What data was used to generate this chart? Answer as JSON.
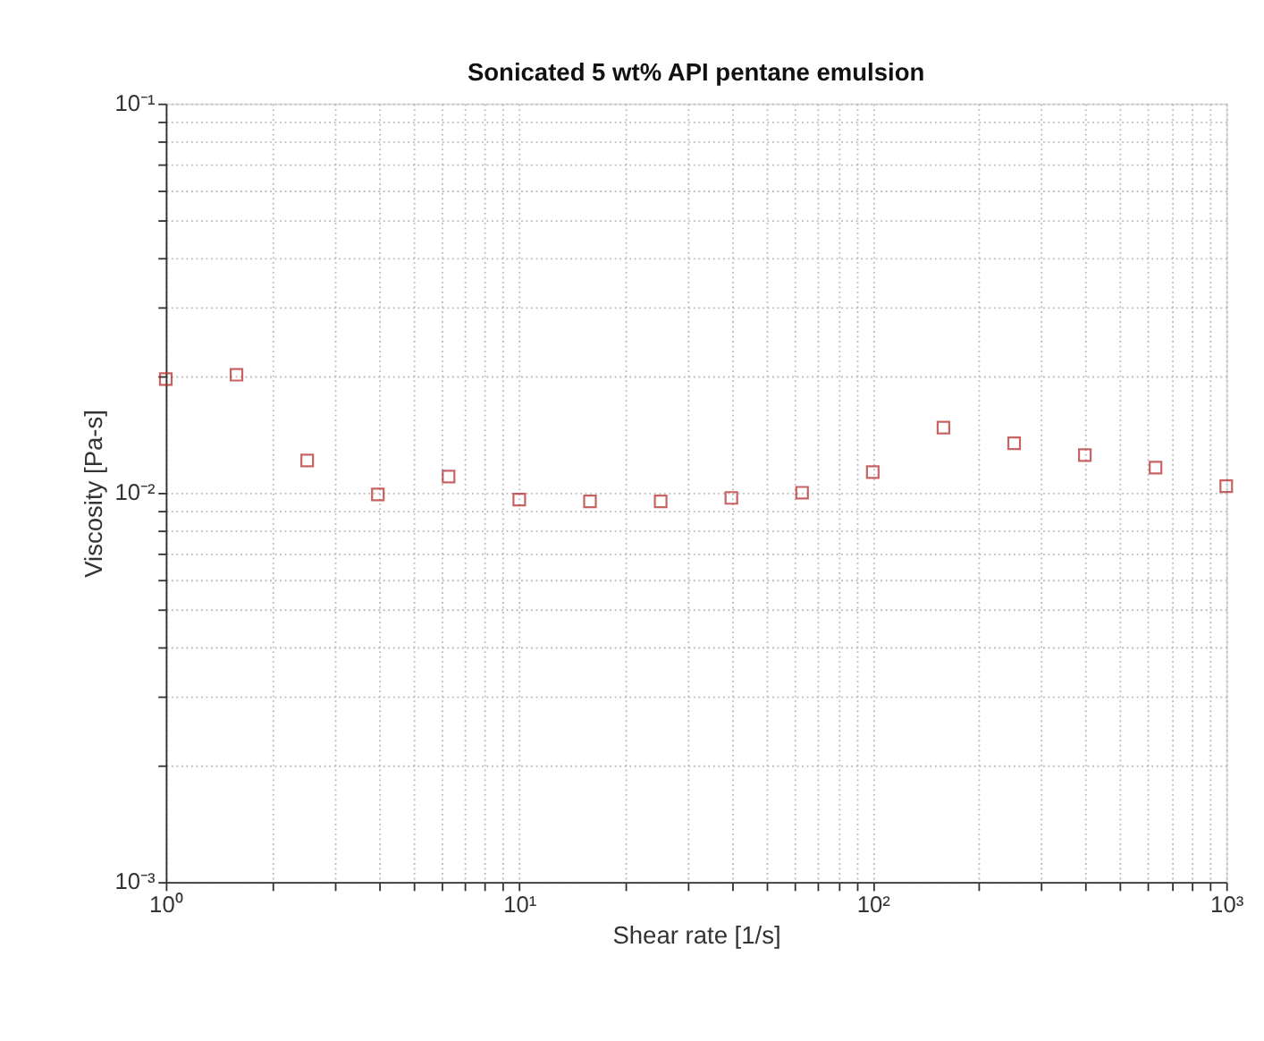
{
  "chart_data": {
    "type": "scatter",
    "title": "Sonicated 5 wt% API pentane emulsion",
    "xlabel": "Shear rate [1/s]",
    "ylabel": "Viscosity [Pa-s]",
    "x": [
      1,
      1.585,
      2.512,
      3.981,
      6.31,
      10,
      15.85,
      25.12,
      39.81,
      63.1,
      100,
      158.5,
      251.2,
      398.1,
      631,
      1000
    ],
    "series": [
      {
        "color": "#b22222",
        "values": [
          0.0196,
          0.0201,
          0.0121,
          0.0099,
          0.011,
          0.0096,
          0.0095,
          0.0095,
          0.0097,
          0.01,
          0.0113,
          0.0147,
          0.0134,
          0.0125,
          0.0116,
          0.0104
        ]
      }
    ],
    "log": "xy",
    "marker": "square",
    "grid": true,
    "legend": false,
    "xlim": [
      1,
      1000
    ],
    "ylim": [
      0.001,
      0.1
    ],
    "xticks": [
      {
        "value": 1,
        "label": "10⁰"
      },
      {
        "value": 2,
        "label": null
      },
      {
        "value": 3,
        "label": null
      },
      {
        "value": 4,
        "label": null
      },
      {
        "value": 5,
        "label": null
      },
      {
        "value": 6,
        "label": null
      },
      {
        "value": 7,
        "label": null
      },
      {
        "value": 8,
        "label": null
      },
      {
        "value": 9,
        "label": null
      },
      {
        "value": 10,
        "label": "10¹"
      },
      {
        "value": 20,
        "label": null
      },
      {
        "value": 30,
        "label": null
      },
      {
        "value": 40,
        "label": null
      },
      {
        "value": 50,
        "label": null
      },
      {
        "value": 60,
        "label": null
      },
      {
        "value": 70,
        "label": null
      },
      {
        "value": 80,
        "label": null
      },
      {
        "value": 90,
        "label": null
      },
      {
        "value": 100,
        "label": "10²"
      },
      {
        "value": 200,
        "label": null
      },
      {
        "value": 300,
        "label": null
      },
      {
        "value": 400,
        "label": null
      },
      {
        "value": 500,
        "label": null
      },
      {
        "value": 600,
        "label": null
      },
      {
        "value": 700,
        "label": null
      },
      {
        "value": 800,
        "label": null
      },
      {
        "value": 900,
        "label": null
      },
      {
        "value": 1000,
        "label": "10³"
      }
    ],
    "yticks": [
      {
        "value": 0.001,
        "label": "10⁻³"
      },
      {
        "value": 0.002,
        "label": null
      },
      {
        "value": 0.003,
        "label": null
      },
      {
        "value": 0.004,
        "label": null
      },
      {
        "value": 0.005,
        "label": null
      },
      {
        "value": 0.006,
        "label": null
      },
      {
        "value": 0.007,
        "label": null
      },
      {
        "value": 0.008,
        "label": null
      },
      {
        "value": 0.009,
        "label": null
      },
      {
        "value": 0.01,
        "label": "10⁻²"
      },
      {
        "value": 0.02,
        "label": null
      },
      {
        "value": 0.03,
        "label": null
      },
      {
        "value": 0.04,
        "label": null
      },
      {
        "value": 0.05,
        "label": null
      },
      {
        "value": 0.06,
        "label": null
      },
      {
        "value": 0.07,
        "label": null
      },
      {
        "value": 0.08,
        "label": null
      },
      {
        "value": 0.09,
        "label": null
      },
      {
        "value": 0.1,
        "label": "10⁻¹"
      }
    ]
  }
}
